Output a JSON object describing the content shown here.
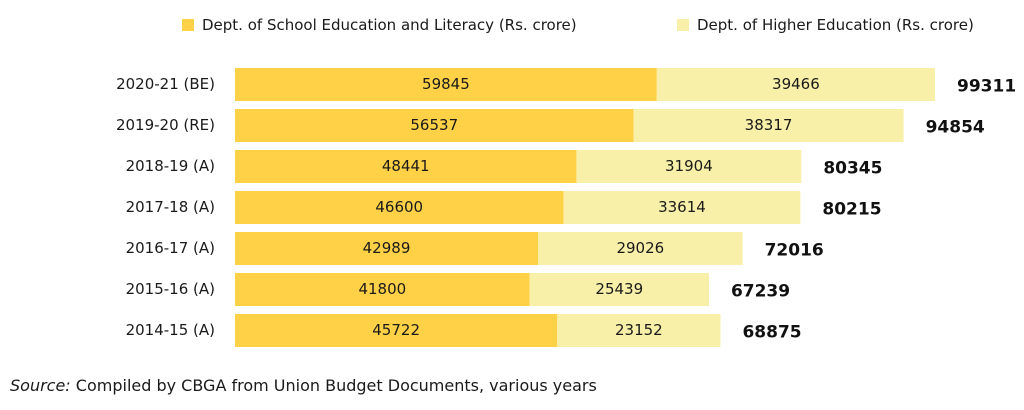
{
  "legend": {
    "school": "Dept. of School Education and Literacy (Rs. crore)",
    "higher": "Dept. of Higher Education (Rs. crore)"
  },
  "source": {
    "prefix": "Source:",
    "text": " Compiled by CBGA from Union Budget Documents, various years"
  },
  "chart_data": {
    "type": "bar",
    "orientation": "horizontal",
    "stacked": true,
    "categories": [
      "2020-21 (BE)",
      "2019-20 (RE)",
      "2018-19 (A)",
      "2017-18 (A)",
      "2016-17 (A)",
      "2015-16 (A)",
      "2014-15 (A)"
    ],
    "series": [
      {
        "name": "Dept. of School Education and Literacy (Rs. crore)",
        "values": [
          59845,
          56537,
          48441,
          46600,
          42989,
          41800,
          45722
        ],
        "color": "#FFD147"
      },
      {
        "name": "Dept. of Higher Education (Rs. crore)",
        "values": [
          39466,
          38317,
          31904,
          33614,
          29026,
          25439,
          23152
        ],
        "color": "#F8EFA8"
      }
    ],
    "totals": [
      99311,
      94854,
      80345,
      80215,
      72016,
      67239,
      68875
    ],
    "grid": false,
    "legend_position": "top"
  }
}
